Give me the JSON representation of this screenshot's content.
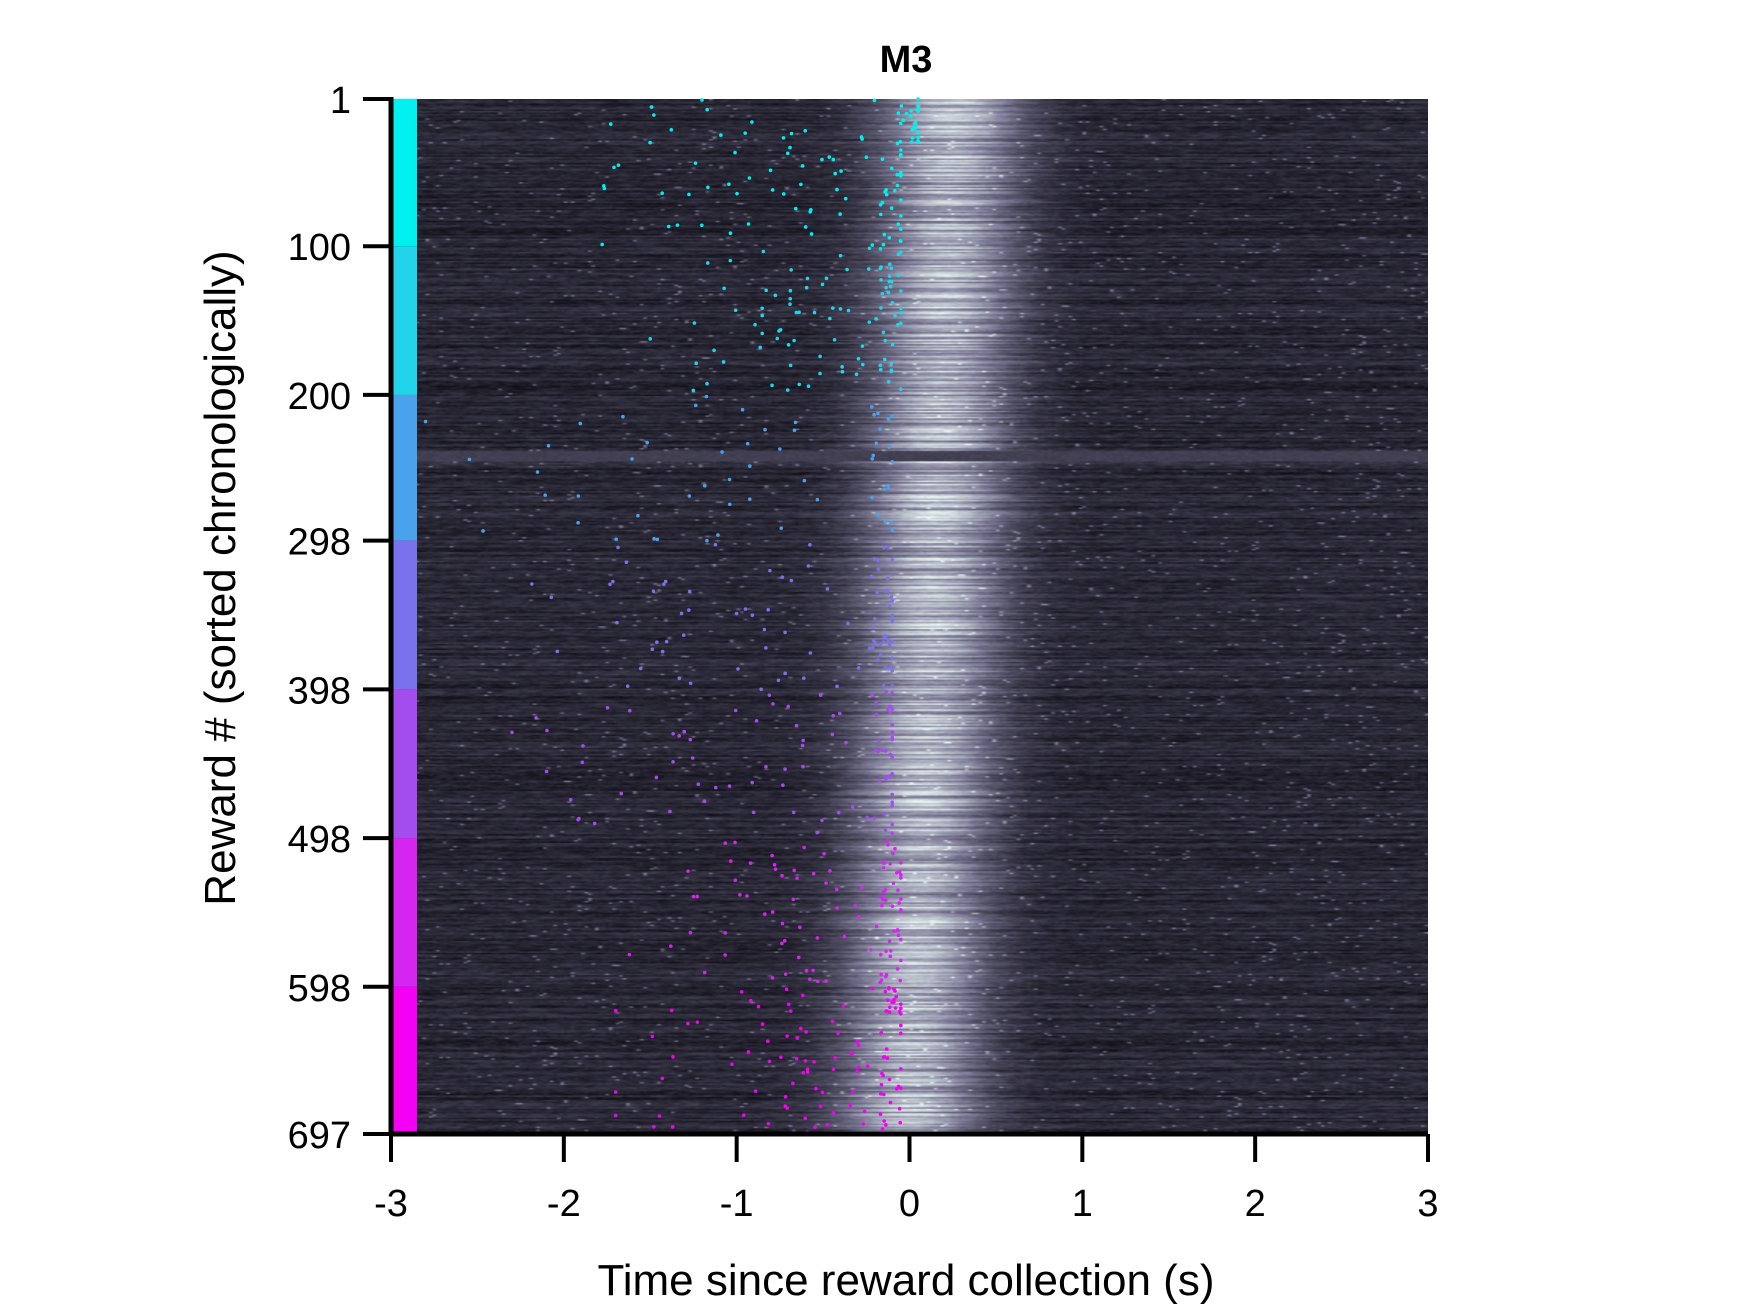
{
  "chart_data": {
    "type": "heatmap",
    "title": "M3",
    "xlabel": "Time since reward collection (s)",
    "ylabel": "Reward # (sorted chronologically)",
    "xlim": [
      -3,
      3
    ],
    "ylim": [
      1,
      697
    ],
    "xticks": [
      -3,
      -2,
      -1,
      0,
      1,
      2,
      3
    ],
    "xtick_labels": [
      "-3",
      "-2",
      "-1",
      "0",
      "1",
      "2",
      "3"
    ],
    "yticks": [
      1,
      100,
      200,
      298,
      398,
      498,
      598,
      697
    ],
    "ytick_labels": [
      "1",
      "100",
      "200",
      "298",
      "398",
      "498",
      "598",
      "697"
    ],
    "colorbar_blocks": [
      {
        "from": 1,
        "to": 100,
        "color": "#00f0f0"
      },
      {
        "from": 100,
        "to": 200,
        "color": "#22d4ea"
      },
      {
        "from": 200,
        "to": 298,
        "color": "#4aa2ec"
      },
      {
        "from": 298,
        "to": 398,
        "color": "#7a72ec"
      },
      {
        "from": 398,
        "to": 498,
        "color": "#a54cee"
      },
      {
        "from": 498,
        "to": 598,
        "color": "#d426f0"
      },
      {
        "from": 598,
        "to": 697,
        "color": "#f400f4"
      }
    ],
    "heatmap": {
      "colormap": [
        "#111019",
        "#7d7a96",
        "#eaf7f4"
      ],
      "peak_time_start": 0.25,
      "peak_time_end": 0.0,
      "peak_width": 0.28,
      "gap_trial": 240
    },
    "event_markers": {
      "description": "pre-reward licks/entries per trial, colored by trial block",
      "segments": [
        {
          "from": 1,
          "to": 30,
          "t_min": -2.4,
          "t_max": 0.05,
          "t_center": -0.25,
          "count": 40
        },
        {
          "from": 30,
          "to": 100,
          "t_min": -1.8,
          "t_max": -0.05,
          "t_center": -0.6,
          "count": 70
        },
        {
          "from": 100,
          "to": 200,
          "t_min": -1.5,
          "t_max": -0.05,
          "t_center": -0.55,
          "count": 95
        },
        {
          "from": 200,
          "to": 298,
          "t_min": -2.8,
          "t_max": -0.1,
          "t_center": -1.2,
          "count": 55
        },
        {
          "from": 298,
          "to": 398,
          "t_min": -2.6,
          "t_max": -0.1,
          "t_center": -0.85,
          "count": 85
        },
        {
          "from": 398,
          "to": 498,
          "t_min": -2.3,
          "t_max": -0.1,
          "t_center": -0.7,
          "count": 85
        },
        {
          "from": 498,
          "to": 598,
          "t_min": -1.7,
          "t_max": -0.05,
          "t_center": -0.55,
          "count": 95
        },
        {
          "from": 598,
          "to": 697,
          "t_min": -1.7,
          "t_max": -0.05,
          "t_center": -0.6,
          "count": 110
        }
      ]
    }
  }
}
